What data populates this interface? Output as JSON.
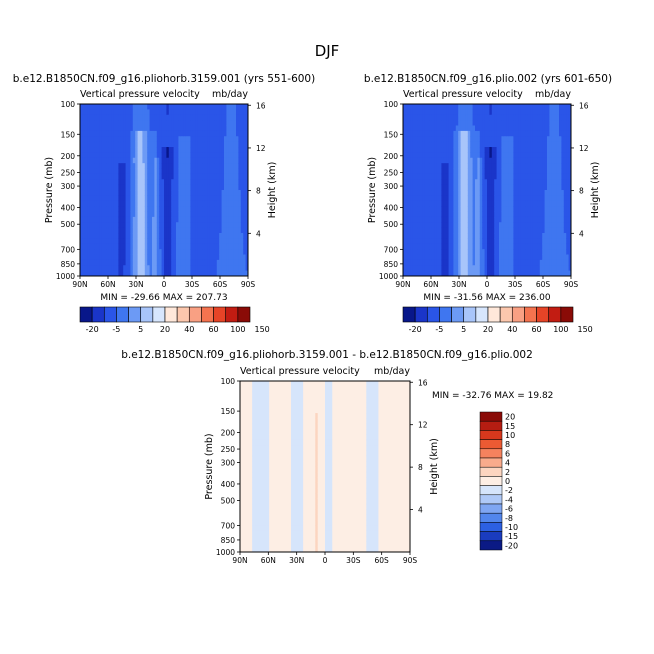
{
  "page": {
    "season": "DJF",
    "axis_top_label": "Vertical pressure velocity",
    "axis_top_units": "mb/day",
    "ylabel_left": "Pressure (mb)",
    "ylabel_right": "Height (km)"
  },
  "chart_data": [
    {
      "type": "heatmap",
      "title": "b.e12.B1850CN.f09_g16.pliohorb.3159.001 (yrs 551-600)",
      "subtitle": "Vertical pressure velocity",
      "units": "mb/day",
      "xlabel": "",
      "ylabel": "Pressure (mb)",
      "ylabel_right": "Height (km)",
      "x_ticks": [
        "90N",
        "60N",
        "30N",
        "0",
        "30S",
        "60S",
        "90S"
      ],
      "y_ticks": [
        100,
        150,
        200,
        250,
        300,
        400,
        500,
        700,
        850,
        1000
      ],
      "y_scale": "log",
      "right_ticks": [
        16,
        12,
        8,
        4
      ],
      "stats": "MIN = -29.66   MAX = 207.73",
      "colorbar_levels": [
        -20,
        -5,
        5,
        20,
        40,
        60,
        100,
        150
      ]
    },
    {
      "type": "heatmap",
      "title": "b.e12.B1850CN.f09_g16.plio.002 (yrs 601-650)",
      "subtitle": "Vertical pressure velocity",
      "units": "mb/day",
      "xlabel": "",
      "ylabel": "Pressure (mb)",
      "ylabel_right": "Height (km)",
      "x_ticks": [
        "90N",
        "60N",
        "30N",
        "0",
        "30S",
        "60S",
        "90S"
      ],
      "y_ticks": [
        100,
        150,
        200,
        250,
        300,
        400,
        500,
        700,
        850,
        1000
      ],
      "y_scale": "log",
      "right_ticks": [
        16,
        12,
        8,
        4
      ],
      "stats": "MIN = -31.56   MAX = 236.00",
      "colorbar_levels": [
        -20,
        -5,
        5,
        20,
        40,
        60,
        100,
        150
      ]
    },
    {
      "type": "heatmap",
      "title": "b.e12.B1850CN.f09_g16.pliohorb.3159.001 - b.e12.B1850CN.f09_g16.plio.002",
      "subtitle": "Vertical pressure velocity",
      "units": "mb/day",
      "xlabel": "",
      "ylabel": "Pressure (mb)",
      "ylabel_right": "Height (km)",
      "x_ticks": [
        "90N",
        "60N",
        "30N",
        "0",
        "30S",
        "60S",
        "90S"
      ],
      "y_ticks": [
        100,
        150,
        200,
        250,
        300,
        400,
        500,
        700,
        850,
        1000
      ],
      "y_scale": "log",
      "right_ticks": [
        16,
        12,
        8,
        4
      ],
      "stats": "MIN = -32.76   MAX =  19.82",
      "colorbar_levels": [
        20,
        15,
        10,
        8,
        6,
        4,
        2,
        0,
        -2,
        -4,
        -6,
        -8,
        -10,
        -15,
        -20
      ]
    }
  ],
  "colors": {
    "abs_scale": [
      "#08178a",
      "#1a35c9",
      "#2a55e8",
      "#3f76f0",
      "#6c9af5",
      "#a8c5fa",
      "#d7e6fd",
      "#ffe8da",
      "#fcc7ad",
      "#f9a083",
      "#f4734f",
      "#e64427",
      "#c21c12",
      "#8a0b07"
    ],
    "diff_scale": [
      "#8a0b07",
      "#b51d12",
      "#d8381d",
      "#ec5a33",
      "#f5825e",
      "#f9ab8c",
      "#fcd5c0",
      "#fdeee4",
      "#d6e5fb",
      "#afc9f7",
      "#7fa6f2",
      "#5286ec",
      "#2c60e2",
      "#1a3cbf",
      "#0b1a85"
    ]
  }
}
